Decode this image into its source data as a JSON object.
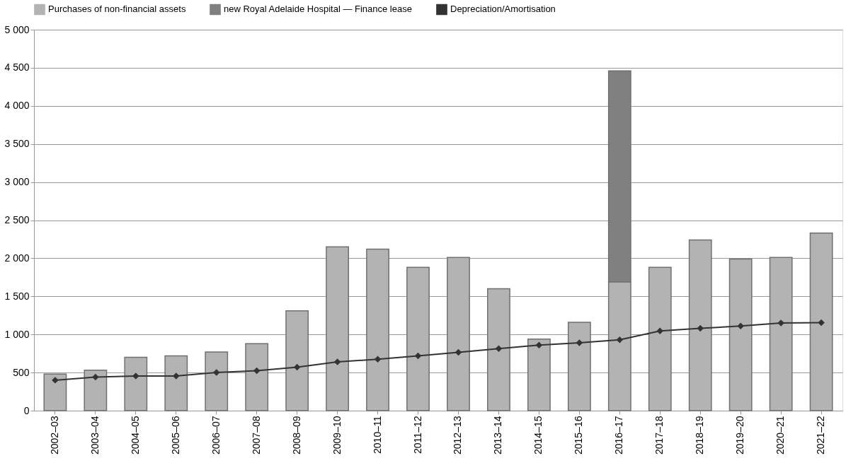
{
  "chart_data": {
    "type": "bar",
    "stacked": true,
    "categories": [
      "2002–03",
      "2003–04",
      "2004–05",
      "2005–06",
      "2006–07",
      "2007–08",
      "2008–09",
      "2009–10",
      "2010–11",
      "2011–12",
      "2012–13",
      "2013–14",
      "2014–15",
      "2015–16",
      "2016–17",
      "2017–18",
      "2018–19",
      "2019–20",
      "2020–21",
      "2021–22"
    ],
    "series": [
      {
        "name": "Purchases of non-financial assets",
        "color": "#b3b3b3",
        "values": [
          480,
          530,
          700,
          720,
          770,
          880,
          1310,
          2150,
          2120,
          1880,
          2010,
          1600,
          940,
          1160,
          1690,
          1880,
          2240,
          1990,
          2010,
          2330
        ]
      },
      {
        "name": "new Royal Adelaide Hospital — Finance lease",
        "color": "#808080",
        "values": [
          null,
          null,
          null,
          null,
          null,
          null,
          null,
          null,
          null,
          null,
          null,
          null,
          null,
          null,
          2770,
          null,
          null,
          null,
          null,
          null
        ]
      },
      {
        "name": "Depreciation/Amortisation",
        "type": "line",
        "color": "#333333",
        "marker": "diamond",
        "values": [
          400,
          440,
          455,
          455,
          500,
          525,
          570,
          640,
          675,
          720,
          765,
          815,
          860,
          890,
          930,
          1045,
          1080,
          1110,
          1150,
          1155
        ]
      }
    ],
    "ylim": [
      0,
      5000
    ],
    "yticks": [
      {
        "value": 0,
        "label": "0"
      },
      {
        "value": 500,
        "label": "500"
      },
      {
        "value": 1000,
        "label": "1 000"
      },
      {
        "value": 1500,
        "label": "1 500"
      },
      {
        "value": 2000,
        "label": "2 000"
      },
      {
        "value": 2500,
        "label": "2 500"
      },
      {
        "value": 3000,
        "label": "3 000"
      },
      {
        "value": 3500,
        "label": "3 500"
      },
      {
        "value": 4000,
        "label": "4 000"
      },
      {
        "value": 4500,
        "label": "4 500"
      },
      {
        "value": 5000,
        "label": "5 000"
      }
    ],
    "grid": "y",
    "legend": "top"
  }
}
